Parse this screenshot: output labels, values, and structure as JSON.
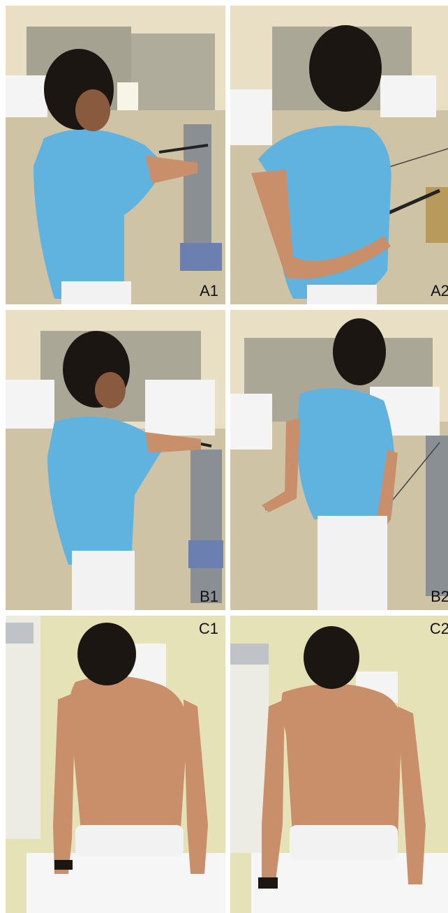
{
  "figure": {
    "panels": [
      {
        "label": "A1"
      },
      {
        "label": "A2"
      },
      {
        "label": "B1"
      },
      {
        "label": "B2"
      },
      {
        "label": "C1"
      },
      {
        "label": "C2"
      }
    ]
  },
  "colors": {
    "wall": "#e8dfc4",
    "floor": "#cfc3a6",
    "shirt": "#5fb3de",
    "skin": "#c98f6b",
    "hair": "#1c1612",
    "pants": "#f2f2f2",
    "machine": "#8a8f94",
    "clinic_wall": "#e6e2b8"
  }
}
